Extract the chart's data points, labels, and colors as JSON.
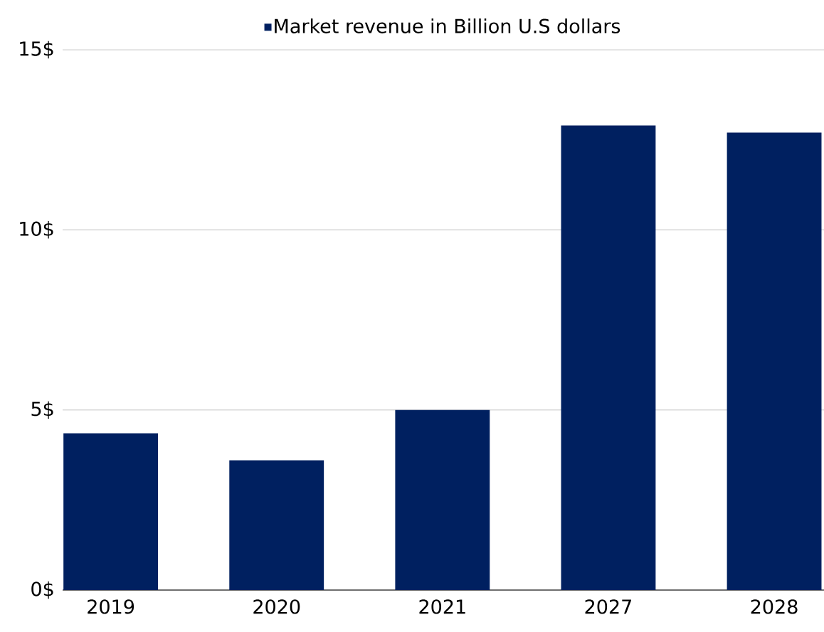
{
  "chart_data": {
    "type": "bar",
    "categories": [
      "2019",
      "2020",
      "2021",
      "2027",
      "2028"
    ],
    "series": [
      {
        "name": "Market revenue in Billion U.S dollars",
        "color": "#002060",
        "values": [
          4.35,
          3.6,
          5.0,
          12.9,
          12.7
        ]
      }
    ],
    "ylim": [
      0,
      15
    ],
    "yticks": [
      {
        "value": 0,
        "label": "0$"
      },
      {
        "value": 5,
        "label": "5$"
      },
      {
        "value": 10,
        "label": "10$"
      },
      {
        "value": 15,
        "label": "15$"
      }
    ],
    "grid": "y",
    "legend": "top"
  }
}
